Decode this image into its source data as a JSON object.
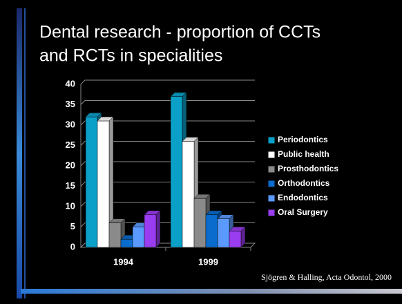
{
  "chart_data": {
    "type": "bar3d",
    "title_lines": [
      "Dental research - proportion of CCTs",
      "and RCTs in specialities"
    ],
    "source": "Sjögren & Halling, Acta Odontol, 2000",
    "categories": [
      "1994",
      "1999"
    ],
    "series": [
      {
        "name": "Periodontics",
        "color": "#0aa0c8",
        "values": [
          32,
          37
        ]
      },
      {
        "name": "Public health",
        "color": "#ffffff",
        "values": [
          31,
          26
        ]
      },
      {
        "name": "Prosthodontics",
        "color": "#8a8a8a",
        "values": [
          6,
          12
        ]
      },
      {
        "name": "Orthodontics",
        "color": "#0a6ccc",
        "values": [
          2,
          8
        ]
      },
      {
        "name": "Endodontics",
        "color": "#5a9aff",
        "values": [
          5,
          7
        ]
      },
      {
        "name": "Oral Surgery",
        "color": "#9a3cf0",
        "values": [
          8,
          4
        ]
      }
    ],
    "ylim": [
      0,
      40
    ],
    "yticks": [
      0,
      5,
      10,
      15,
      20,
      25,
      30,
      35,
      40
    ],
    "grid": true,
    "legend": "right"
  }
}
